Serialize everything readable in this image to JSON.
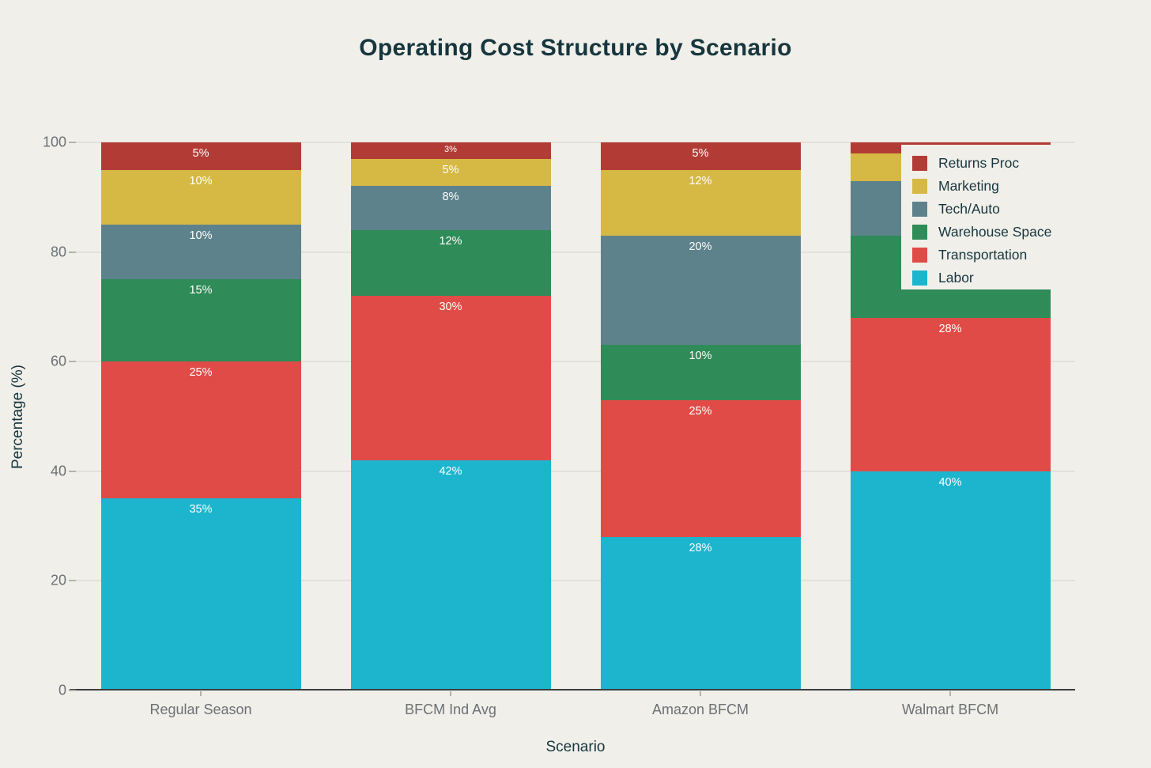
{
  "chart_data": {
    "type": "bar",
    "stacked": true,
    "title": "Operating Cost Structure by Scenario",
    "xlabel": "Scenario",
    "ylabel": "Percentage (%)",
    "ylim": [
      0,
      100
    ],
    "yticks": [
      0,
      20,
      40,
      60,
      80,
      100
    ],
    "grid": true,
    "categories": [
      "Regular Season",
      "BFCM Ind Avg",
      "Amazon BFCM",
      "Walmart BFCM"
    ],
    "series": [
      {
        "name": "Labor",
        "color": "#1cb5cd",
        "values": [
          35,
          42,
          28,
          40
        ]
      },
      {
        "name": "Transportation",
        "color": "#e14b47",
        "values": [
          25,
          30,
          25,
          28
        ]
      },
      {
        "name": "Warehouse Space",
        "color": "#2f8b57",
        "values": [
          15,
          12,
          10,
          15
        ]
      },
      {
        "name": "Tech/Auto",
        "color": "#5d828c",
        "values": [
          10,
          8,
          20,
          10
        ]
      },
      {
        "name": "Marketing",
        "color": "#d6b845",
        "values": [
          10,
          5,
          12,
          5
        ]
      },
      {
        "name": "Returns Proc",
        "color": "#b23c35",
        "values": [
          5,
          3,
          5,
          2
        ]
      }
    ],
    "data_labels_suffix": "%",
    "legend": {
      "position": "top-right-inside",
      "order": [
        "Returns Proc",
        "Marketing",
        "Tech/Auto",
        "Warehouse Space",
        "Transportation",
        "Labor"
      ]
    }
  },
  "colors": {
    "background": "#f0efe9",
    "text_dark": "#17363e",
    "text_muted": "#6c7175",
    "gridline": "#e2e1da",
    "axis_spine": "#3b3e40"
  }
}
